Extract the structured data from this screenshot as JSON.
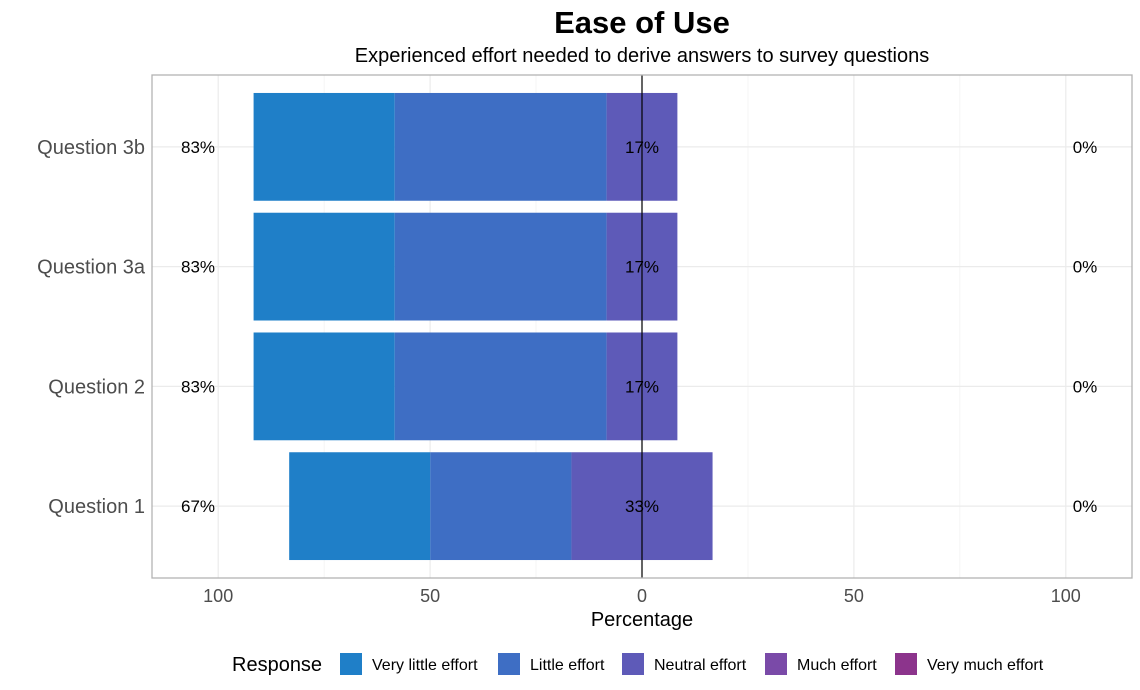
{
  "chart_data": {
    "type": "bar",
    "orientation": "horizontal",
    "stacking": "diverging",
    "title": "Ease of Use",
    "subtitle": "Experienced effort needed to derive answers to survey questions",
    "xlabel": "Percentage",
    "ylabel": "",
    "xlim": [
      -100,
      100
    ],
    "xticks": [
      -100,
      -50,
      0,
      50,
      100
    ],
    "xtick_labels": [
      "100",
      "50",
      "0",
      "50",
      "100"
    ],
    "categories": [
      "Question 1",
      "Question 2",
      "Question 3a",
      "Question 3b"
    ],
    "series": [
      {
        "name": "Very little effort",
        "color": "#1f7fc8",
        "values": [
          33.3,
          33.3,
          33.3,
          33.3
        ]
      },
      {
        "name": "Little effort",
        "color": "#3e6ec4",
        "values": [
          33.3,
          50.0,
          50.0,
          50.0
        ]
      },
      {
        "name": "Neutral effort",
        "color": "#5e5ab8",
        "values": [
          33.3,
          16.7,
          16.7,
          16.7
        ]
      },
      {
        "name": "Much effort",
        "color": "#7a4aa8",
        "values": [
          0,
          0,
          0,
          0
        ]
      },
      {
        "name": "Very much effort",
        "color": "#8c348c",
        "values": [
          0,
          0,
          0,
          0
        ]
      }
    ],
    "left_labels": [
      "67%",
      "83%",
      "83%",
      "83%"
    ],
    "center_labels": [
      "33%",
      "17%",
      "17%",
      "17%"
    ],
    "right_labels": [
      "0%",
      "0%",
      "0%",
      "0%"
    ],
    "legend_title": "Response",
    "legend_position": "bottom",
    "grid": true,
    "center_line": true
  }
}
